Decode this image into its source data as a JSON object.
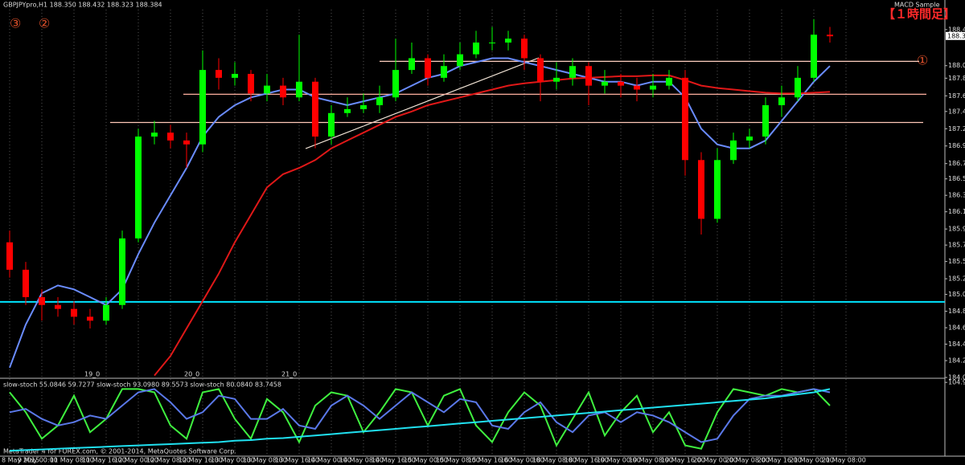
{
  "chart_data": [
    {
      "type": "candlestick",
      "title": "GBPJPYpro,H1  188.350 188.432 188.323 188.384",
      "subtitle": "MACD Sample",
      "annotations": [
        "【１時間足】",
        "①",
        "②",
        "③"
      ],
      "day_labels": [
        "19_0",
        "20_0",
        "21_0"
      ],
      "categories": [
        "8 May 2015",
        null,
        "9 May 00:00",
        null,
        "11 May 08:00",
        null,
        "11 May 16:00",
        null,
        "12 May 00:00",
        null,
        "12 May 08:00",
        null,
        "12 May 16:00",
        null,
        "13 May 00:00",
        null,
        "13 May 08:00",
        null,
        "13 May 16:00",
        null,
        "14 May 00:00",
        null,
        "14 May 08:00",
        null,
        "14 May 16:00",
        null,
        "15 May 00:00",
        null,
        "15 May 08:00",
        null,
        "15 May 16:00",
        null,
        "16 May 00:00",
        null,
        "18 May 08:00",
        null,
        "18 May 16:00",
        null,
        "19 May 00:00",
        null,
        "19 May 08:00",
        null,
        "19 May 16:00",
        null,
        "20 May 00:00",
        null,
        "20 May 08:00",
        null,
        "20 May 16:00",
        null,
        "21 May 00:00",
        null,
        "21 May 08:00"
      ],
      "open": [
        185.75,
        185.4,
        185.05,
        184.95,
        184.9,
        184.8,
        184.75,
        184.95,
        185.8,
        187.1,
        187.15,
        187.05,
        187.0,
        187.95,
        187.85,
        187.9,
        187.65,
        187.75,
        187.6,
        187.8,
        187.1,
        187.4,
        187.45,
        187.5,
        187.6,
        187.95,
        188.1,
        187.85,
        188.0,
        188.15,
        188.3,
        188.3,
        188.35,
        188.1,
        187.8,
        187.85,
        188.0,
        187.75,
        187.8,
        187.75,
        187.7,
        187.75,
        187.85,
        186.8,
        186.05,
        186.8,
        187.05,
        187.1,
        187.5,
        187.6,
        187.85,
        188.4,
        null
      ],
      "high": [
        185.9,
        185.5,
        185.15,
        185.05,
        185.0,
        184.9,
        185.05,
        185.9,
        187.2,
        187.3,
        187.25,
        187.15,
        188.2,
        188.1,
        188.05,
        187.95,
        187.9,
        187.85,
        188.4,
        187.85,
        187.5,
        187.6,
        187.65,
        187.75,
        188.35,
        188.3,
        188.15,
        188.15,
        188.3,
        188.45,
        188.5,
        188.45,
        188.4,
        188.15,
        188.05,
        188.1,
        188.05,
        187.95,
        187.9,
        187.85,
        187.9,
        187.95,
        187.95,
        186.9,
        186.95,
        187.15,
        187.2,
        187.6,
        187.75,
        188.0,
        188.6,
        188.5,
        null
      ],
      "low": [
        185.3,
        184.95,
        184.75,
        184.8,
        184.7,
        184.65,
        184.7,
        184.9,
        185.75,
        187.0,
        186.95,
        186.7,
        186.9,
        187.7,
        187.75,
        187.55,
        187.55,
        187.5,
        187.55,
        186.95,
        187.0,
        187.35,
        187.4,
        187.4,
        187.55,
        187.9,
        187.75,
        187.8,
        187.95,
        188.1,
        188.2,
        188.2,
        187.95,
        187.55,
        187.7,
        187.75,
        187.5,
        187.65,
        187.6,
        187.55,
        187.6,
        187.7,
        186.6,
        185.85,
        186.0,
        186.75,
        186.95,
        187.0,
        187.35,
        187.55,
        187.8,
        188.3,
        null
      ],
      "close": [
        185.4,
        185.05,
        184.95,
        184.9,
        184.8,
        184.75,
        184.95,
        185.8,
        187.1,
        187.15,
        187.05,
        187.0,
        187.95,
        187.85,
        187.9,
        187.65,
        187.75,
        187.6,
        187.8,
        187.1,
        187.4,
        187.45,
        187.5,
        187.6,
        187.95,
        188.1,
        187.85,
        188.0,
        188.15,
        188.3,
        188.3,
        188.35,
        188.1,
        187.8,
        187.85,
        188.0,
        187.75,
        187.8,
        187.75,
        187.7,
        187.75,
        187.85,
        186.8,
        186.05,
        186.8,
        187.05,
        187.1,
        187.5,
        187.6,
        187.85,
        188.4,
        188.38,
        null
      ],
      "up_color": "#00ff00",
      "down_color": "#ff0000",
      "series": [
        {
          "color": "#6a8cff",
          "values": [
            184.15,
            184.7,
            185.1,
            185.2,
            185.15,
            185.05,
            184.95,
            185.15,
            185.6,
            186.0,
            186.35,
            186.7,
            187.1,
            187.35,
            187.5,
            187.6,
            187.65,
            187.7,
            187.7,
            187.6,
            187.55,
            187.5,
            187.55,
            187.6,
            187.65,
            187.75,
            187.85,
            187.9,
            188.0,
            188.05,
            188.1,
            188.1,
            188.05,
            188.0,
            187.95,
            187.9,
            187.85,
            187.8,
            187.8,
            187.75,
            187.8,
            187.8,
            187.6,
            187.2,
            187.0,
            186.95,
            186.95,
            187.05,
            187.3,
            187.55,
            187.8,
            188.0,
            null
          ]
        },
        {
          "color": "#e01818",
          "values": [
            null,
            null,
            null,
            null,
            null,
            null,
            null,
            null,
            null,
            184.05,
            184.3,
            184.65,
            185.0,
            185.35,
            185.75,
            186.1,
            186.45,
            186.62,
            186.7,
            186.8,
            186.95,
            187.05,
            187.15,
            187.25,
            187.35,
            187.42,
            187.5,
            187.55,
            187.6,
            187.65,
            187.7,
            187.75,
            187.78,
            187.8,
            187.82,
            187.84,
            187.85,
            187.86,
            187.87,
            187.87,
            187.88,
            187.88,
            187.82,
            187.75,
            187.72,
            187.7,
            187.68,
            187.66,
            187.65,
            187.65,
            187.66,
            187.67,
            null
          ]
        }
      ],
      "levels": [
        {
          "value": 184.99,
          "color": "#00e5ff"
        },
        {
          "value": 188.06,
          "color": "#ffd0c0"
        },
        {
          "value": 187.64,
          "color": "#ffb0a0"
        },
        {
          "value": 187.28,
          "color": "#ffc8b8"
        }
      ],
      "current_price": 188.384,
      "ylim": [
        184.025,
        188.72
      ],
      "yticks": [
        188.465,
        188.005,
        187.845,
        {
          "value": 187.62,
          "label": "187.620"
        },
        {
          "value": 187.42,
          "label": "187.420"
        },
        {
          "value": 187.2,
          "label": "187.200"
        },
        {
          "value": 186.98,
          "label": "186.980"
        },
        186.755,
        {
          "value": 186.56,
          "label": "186.560"
        },
        {
          "value": 186.35,
          "label": "186.350"
        },
        {
          "value": 186.14,
          "label": "186.140"
        },
        {
          "value": 185.92,
          "label": "185.920"
        },
        185.715,
        185.505,
        185.285,
        185.085,
        {
          "value": 184.87,
          "label": "184.870"
        },
        {
          "value": 184.66,
          "label": "184.660"
        },
        {
          "value": 184.45,
          "label": "184.450"
        },
        {
          "value": 184.24,
          "label": "184.240"
        },
        184.025
      ],
      "grid": true
    },
    {
      "type": "line",
      "title": "slow-stoch 55.0846 59.7277  slow-stoch 93.0980 89.5573  slow-stoch 80.0840 83.7458",
      "footer": "MetaTrader 4 for FOREX.com, © 2001-2014, MetaQuotes Software Corp.",
      "series": [
        {
          "color": "#3ff03f",
          "values": [
            90,
            60,
            20,
            40,
            85,
            30,
            50,
            95,
            95,
            90,
            40,
            20,
            90,
            95,
            50,
            20,
            80,
            60,
            15,
            70,
            90,
            85,
            30,
            60,
            95,
            90,
            40,
            85,
            95,
            40,
            15,
            60,
            90,
            70,
            10,
            50,
            90,
            25,
            60,
            85,
            30,
            60,
            10,
            5,
            60,
            95,
            90,
            85,
            95,
            90,
            95,
            70,
            null
          ]
        },
        {
          "color": "#5a78e8",
          "values": [
            60,
            65,
            50,
            40,
            45,
            55,
            50,
            70,
            90,
            95,
            75,
            50,
            60,
            85,
            80,
            50,
            50,
            65,
            40,
            35,
            70,
            85,
            70,
            50,
            70,
            90,
            75,
            60,
            80,
            75,
            40,
            35,
            60,
            75,
            45,
            30,
            55,
            60,
            45,
            60,
            55,
            45,
            30,
            15,
            20,
            55,
            80,
            85,
            85,
            90,
            95,
            90,
            null
          ]
        },
        {
          "color": "#20e0f0",
          "values": [
            2,
            3,
            4,
            5,
            6,
            7,
            8,
            9,
            10,
            11,
            12,
            13,
            14,
            15,
            17,
            18,
            20,
            21,
            23,
            25,
            27,
            29,
            31,
            33,
            35,
            37,
            39,
            41,
            43,
            45,
            47,
            49,
            51,
            53,
            55,
            57,
            59,
            61,
            63,
            65,
            67,
            69,
            71,
            73,
            75,
            77,
            79,
            81,
            84,
            87,
            90,
            95,
            null
          ]
        }
      ],
      "ylim": [
        -5,
        110
      ],
      "yticks": [
        104.973
      ]
    }
  ]
}
